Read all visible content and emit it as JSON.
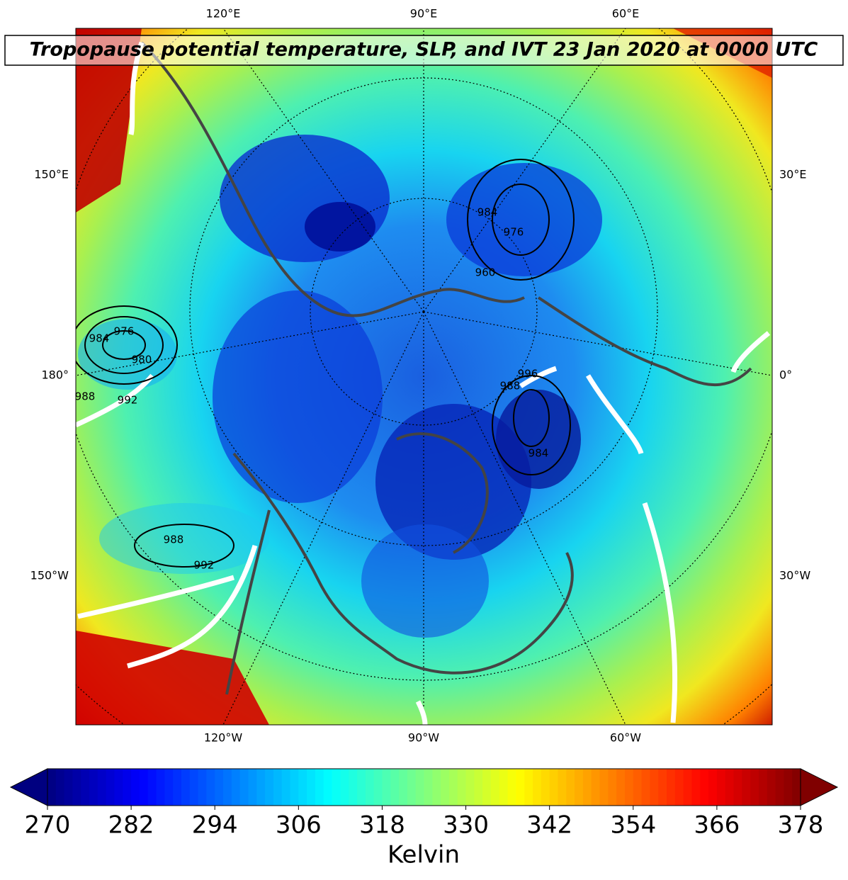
{
  "map": {
    "title": "Tropopause potential temperature, SLP, and IVT 23 Jan 2020 at 0000 UTC",
    "lon_labels": {
      "top": [
        "120°E",
        "90°E",
        "60°E"
      ],
      "left": [
        "150°E",
        "180°",
        "150°W"
      ],
      "right": [
        "30°E",
        "0°",
        "30°W"
      ],
      "bottom": [
        "120°W",
        "90°W",
        "60°W"
      ]
    },
    "slp_labels": [
      "976",
      "984",
      "980",
      "992",
      "988",
      "988",
      "992",
      "984",
      "976",
      "960",
      "996",
      "988",
      "984"
    ],
    "colorbar": {
      "label": "Kelvin",
      "colormap": "jet",
      "lim": [
        270,
        378
      ],
      "ticks": [
        270,
        282,
        294,
        306,
        318,
        330,
        342,
        354,
        366,
        378
      ]
    }
  }
}
